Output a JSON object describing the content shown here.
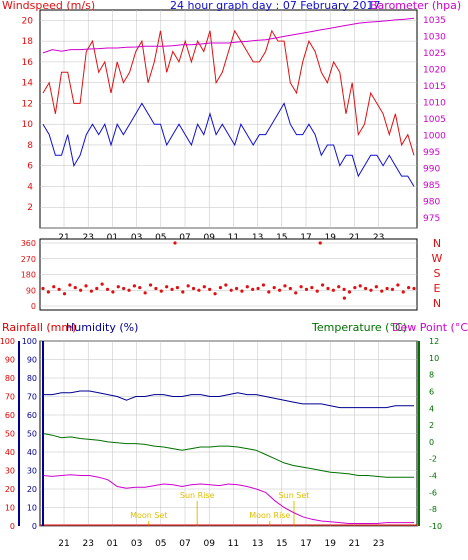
{
  "colors": {
    "background": "#ffffff",
    "plot_bg": "#ffffff",
    "frame": "#000000",
    "grid": "#c0c0c0",
    "wind_gust": "#e01010",
    "wind_speed": "#1010d0",
    "barometer": "#d000d0",
    "direction": "#e01010",
    "humidity": "#000090",
    "temperature": "#007000",
    "dewpoint": "#d000d0",
    "rainfall": "#e00000",
    "sun": "#e0c000"
  },
  "chart_data": [
    {
      "type": "line",
      "title": "24 hour graph day : 07 February 2017",
      "ylabel_left": "Windspeed (m/s)",
      "ylabel_right": "Barometer (hpa)",
      "x_ticks": [
        "21",
        "23",
        "01",
        "03",
        "05",
        "07",
        "09",
        "11",
        "13",
        "15",
        "17",
        "19",
        "21",
        "23"
      ],
      "ylim_left": [
        0,
        21
      ],
      "ylim_right": [
        972,
        1038
      ],
      "y_ticks_left": [
        0,
        2,
        4,
        6,
        8,
        10,
        12,
        14,
        16,
        18,
        20
      ],
      "y_ticks_right": [
        975,
        980,
        985,
        990,
        995,
        1000,
        1005,
        1010,
        1015,
        1020,
        1025,
        1030,
        1035,
        1040
      ],
      "series": [
        {
          "name": "gust",
          "values": [
            13,
            14,
            11,
            15,
            15,
            12,
            12,
            17,
            18,
            15,
            16,
            13,
            16,
            14,
            15,
            17,
            18,
            14,
            16,
            19,
            15,
            17,
            16,
            18,
            16,
            18,
            17,
            19,
            14,
            15,
            17,
            19,
            18,
            17,
            16,
            16,
            17,
            19,
            18,
            18,
            14,
            13,
            16,
            18,
            17,
            15,
            14,
            16,
            15,
            11,
            14,
            9,
            10,
            13,
            12,
            11,
            9,
            11,
            8,
            9,
            7
          ]
        },
        {
          "name": "speed",
          "values": [
            10,
            9,
            7,
            7,
            9,
            6,
            7,
            9,
            10,
            9,
            10,
            8,
            10,
            9,
            10,
            11,
            12,
            11,
            10,
            10,
            8,
            9,
            10,
            9,
            8,
            10,
            9,
            11,
            9,
            10,
            9,
            8,
            10,
            9,
            8,
            9,
            9,
            10,
            11,
            12,
            10,
            9,
            9,
            10,
            9,
            7,
            8,
            8,
            6,
            7,
            7,
            5,
            6,
            7,
            7,
            6,
            7,
            6,
            5,
            5,
            4
          ]
        },
        {
          "name": "barometer",
          "values": [
            1025,
            1026,
            1025.5,
            1026,
            1026,
            1026.2,
            1026.3,
            1026.5,
            1026.5,
            1026.7,
            1026.8,
            1027,
            1027,
            1027,
            1027.2,
            1027.5,
            1027.5,
            1027.7,
            1028,
            1028,
            1028,
            1028.3,
            1028.5,
            1028.8,
            1029,
            1029.5,
            1030,
            1030.5,
            1031,
            1031.5,
            1032,
            1032.5,
            1033,
            1033.5,
            1034,
            1034.3,
            1034.5,
            1034.7,
            1035,
            1035.2,
            1035.5
          ]
        }
      ]
    },
    {
      "type": "scatter",
      "ylabel_right": [
        "N",
        "W",
        "S",
        "E",
        "N"
      ],
      "ylim": [
        0,
        360
      ],
      "y_ticks": [
        0,
        90,
        180,
        270,
        360
      ],
      "x_ticks": [
        "21",
        "23",
        "01",
        "03",
        "05",
        "07",
        "09",
        "11",
        "13",
        "15",
        "17",
        "19",
        "21",
        "23"
      ],
      "series": [
        {
          "name": "direction",
          "values": [
            100,
            80,
            110,
            95,
            70,
            120,
            105,
            90,
            115,
            85,
            100,
            125,
            95,
            80,
            110,
            100,
            90,
            115,
            105,
            75,
            120,
            100,
            85,
            110,
            95,
            105,
            80,
            115,
            100,
            90,
            110,
            95,
            70,
            105,
            120,
            90,
            100,
            85,
            110,
            95,
            100,
            120,
            80,
            105,
            90,
            115,
            100,
            75,
            110,
            95,
            105,
            85,
            120,
            100,
            90,
            110,
            95,
            80,
            105,
            115,
            100,
            90,
            110,
            85,
            100,
            95,
            120,
            80,
            105,
            100
          ]
        }
      ],
      "outliers": [
        {
          "x_index": 5,
          "value": 360
        },
        {
          "x_index": 11,
          "value": 360
        },
        {
          "x_index": 12,
          "value": 45
        }
      ]
    },
    {
      "type": "line",
      "ylabel_left_1": "Rainfall (mm)",
      "ylabel_left_2": "Humidity (%)",
      "ylabel_right_1": "Temperature (°C)",
      "ylabel_right_2": "Dew Point (°C)",
      "y_ticks_rain": [
        0,
        10,
        20,
        30,
        40,
        50,
        60,
        70,
        80,
        90,
        100
      ],
      "y_ticks_humidity": [
        0,
        10,
        20,
        30,
        40,
        50,
        60,
        70,
        80,
        90,
        100
      ],
      "y_ticks_temp": [
        -10,
        -8,
        -6,
        -4,
        -2,
        0,
        2,
        4,
        6,
        8,
        10,
        12
      ],
      "ylim_percent": [
        0,
        100
      ],
      "ylim_temp": [
        -10,
        12
      ],
      "x_ticks": [
        "21",
        "23",
        "01",
        "03",
        "05",
        "07",
        "09",
        "11",
        "13",
        "15",
        "17",
        "19",
        "21",
        "23"
      ],
      "series": [
        {
          "name": "humidity",
          "values": [
            71,
            71,
            72,
            72,
            73,
            73,
            72,
            71,
            70,
            68,
            70,
            70,
            71,
            71,
            70,
            70,
            71,
            71,
            70,
            70,
            71,
            72,
            71,
            71,
            70,
            69,
            68,
            67,
            66,
            66,
            66,
            65,
            64,
            64,
            64,
            64,
            64,
            64,
            65,
            65,
            65
          ]
        },
        {
          "name": "temperature",
          "values": [
            1,
            0.8,
            0.5,
            0.6,
            0.4,
            0.3,
            0.2,
            0,
            -0.1,
            -0.2,
            -0.2,
            -0.3,
            -0.5,
            -0.6,
            -0.8,
            -1,
            -0.8,
            -0.6,
            -0.6,
            -0.5,
            -0.5,
            -0.6,
            -0.8,
            -1,
            -1.5,
            -2,
            -2.5,
            -2.8,
            -3,
            -3.2,
            -3.4,
            -3.6,
            -3.7,
            -3.8,
            -4,
            -4,
            -4.1,
            -4.2,
            -4.2,
            -4.2,
            -4.2
          ]
        },
        {
          "name": "dewpoint",
          "values": [
            -4,
            -4.1,
            -4,
            -3.9,
            -4,
            -4,
            -4.2,
            -4.5,
            -5.3,
            -5.5,
            -5.4,
            -5.4,
            -5.2,
            -5,
            -5.1,
            -5.3,
            -5.1,
            -5,
            -5.1,
            -5.2,
            -5,
            -5.1,
            -5.3,
            -5.6,
            -6,
            -7,
            -7.8,
            -8.4,
            -8.9,
            -9.2,
            -9.4,
            -9.5,
            -9.6,
            -9.7,
            -9.7,
            -9.7,
            -9.7,
            -9.6,
            -9.6,
            -9.6,
            -9.6
          ]
        }
      ],
      "annotations": [
        {
          "label": "Sun Rise",
          "x_index": 6
        },
        {
          "label": "Sun Set",
          "x_index": 10
        },
        {
          "label": "Moon Set",
          "x_index": 4
        },
        {
          "label": "Moon Rise",
          "x_index": 9
        }
      ]
    }
  ]
}
